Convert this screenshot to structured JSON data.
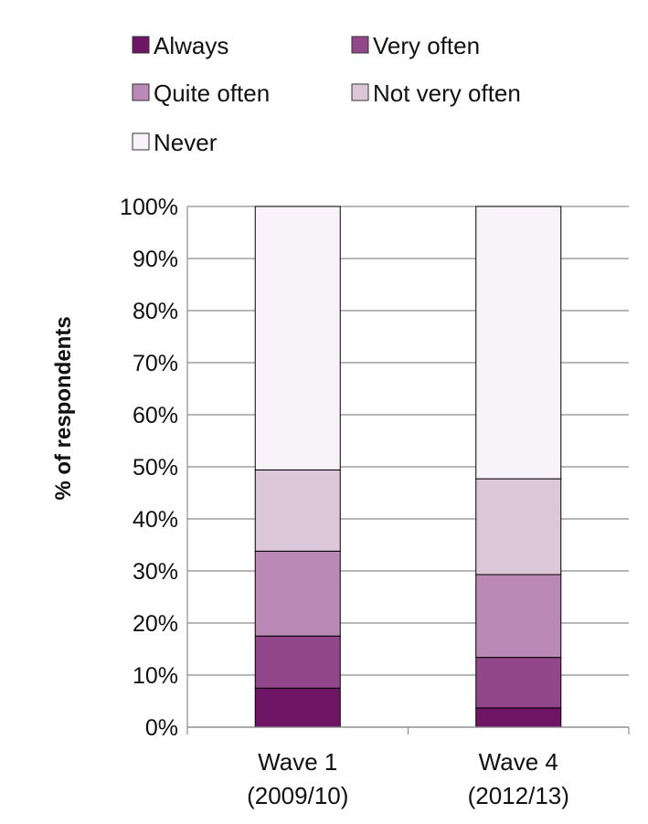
{
  "chart_data": {
    "type": "bar",
    "stacked": true,
    "percent_stacked": true,
    "categories": [
      [
        "Wave 1",
        "(2009/10)"
      ],
      [
        "Wave 4",
        "(2012/13)"
      ]
    ],
    "series": [
      {
        "name": "Always",
        "color": "#6e1566",
        "values": [
          7.5,
          3.7
        ]
      },
      {
        "name": "Very often",
        "color": "#92478a",
        "values": [
          10.0,
          9.7
        ]
      },
      {
        "name": "Quite often",
        "color": "#bb89b5",
        "values": [
          16.3,
          15.9
        ]
      },
      {
        "name": "Not very often",
        "color": "#dcc6da",
        "values": [
          15.6,
          18.4
        ]
      },
      {
        "name": "Never",
        "color": "#f7f3f8",
        "values": [
          50.6,
          52.3
        ]
      }
    ],
    "ylabel": "% of respondents",
    "xlabel": "",
    "ylim": [
      0,
      100
    ],
    "yticks": [
      "0%",
      "10%",
      "20%",
      "30%",
      "40%",
      "50%",
      "60%",
      "70%",
      "80%",
      "90%",
      "100%"
    ],
    "grid": true,
    "legend_position": "top"
  }
}
